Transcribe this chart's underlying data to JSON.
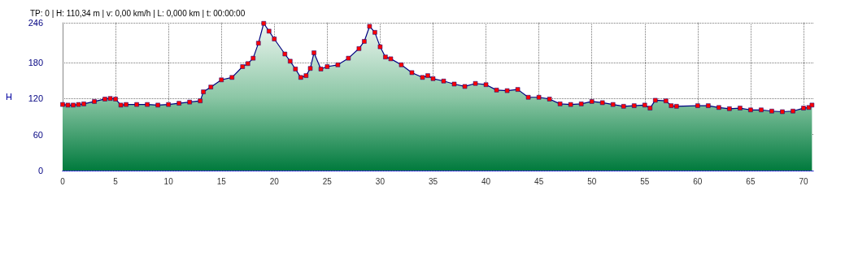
{
  "chart_data": {
    "type": "area",
    "title": "TP: 0 | H: 110,34 m | v: 0,00 km/h | L: 0,000 km | t: 00:00:00",
    "ylabel": "H",
    "x": [
      0,
      0.5,
      1,
      1.5,
      2,
      3,
      4,
      4.5,
      5,
      5.5,
      6,
      7,
      8,
      9,
      10,
      11,
      12,
      13,
      13.3,
      14,
      15,
      16,
      17,
      17.5,
      18,
      18.5,
      19,
      19.5,
      20,
      21,
      21.5,
      22,
      22.5,
      23,
      23.4,
      23.75,
      24.4,
      25,
      26,
      27,
      28,
      28.5,
      29,
      29.5,
      30,
      30.5,
      31,
      32,
      33,
      34,
      34.5,
      35,
      36,
      37,
      38,
      39,
      40,
      41,
      42,
      43,
      44,
      45,
      46,
      47,
      48,
      49,
      50,
      51,
      52,
      53,
      54,
      55,
      55.5,
      56,
      57,
      57.5,
      58,
      60,
      61,
      62,
      63,
      64,
      65,
      66,
      67,
      68,
      69,
      70,
      70.5,
      70.8
    ],
    "series": [
      {
        "color": "#000080",
        "values": [
          110,
          109,
          109,
          110,
          111,
          115,
          119,
          120,
          119,
          109,
          110,
          110,
          110,
          109,
          110,
          112,
          114,
          116,
          131,
          139,
          151,
          155,
          173,
          178,
          187,
          212,
          245,
          232,
          219,
          194,
          182,
          169,
          155,
          158,
          170,
          196,
          169,
          173,
          176,
          187,
          203,
          215,
          240,
          230,
          206,
          189,
          186,
          176,
          163,
          155,
          158,
          153,
          149,
          144,
          140,
          145,
          143,
          134,
          133,
          135,
          122,
          122,
          119,
          111,
          110,
          111,
          115,
          113,
          110,
          107,
          108,
          109,
          104,
          117,
          116,
          108,
          107,
          108,
          108,
          105,
          103,
          104,
          101,
          101,
          99,
          98,
          99,
          104,
          105,
          109
        ]
      }
    ],
    "xlim": [
      0,
      71
    ],
    "xticks": [
      0,
      5,
      10,
      15,
      20,
      25,
      30,
      35,
      40,
      45,
      50,
      55,
      60,
      65,
      70
    ],
    "ylim": [
      0,
      246
    ],
    "yticks": [
      0,
      60,
      120,
      180,
      246
    ],
    "grid": true,
    "marker": "square",
    "line_style": "solid"
  }
}
